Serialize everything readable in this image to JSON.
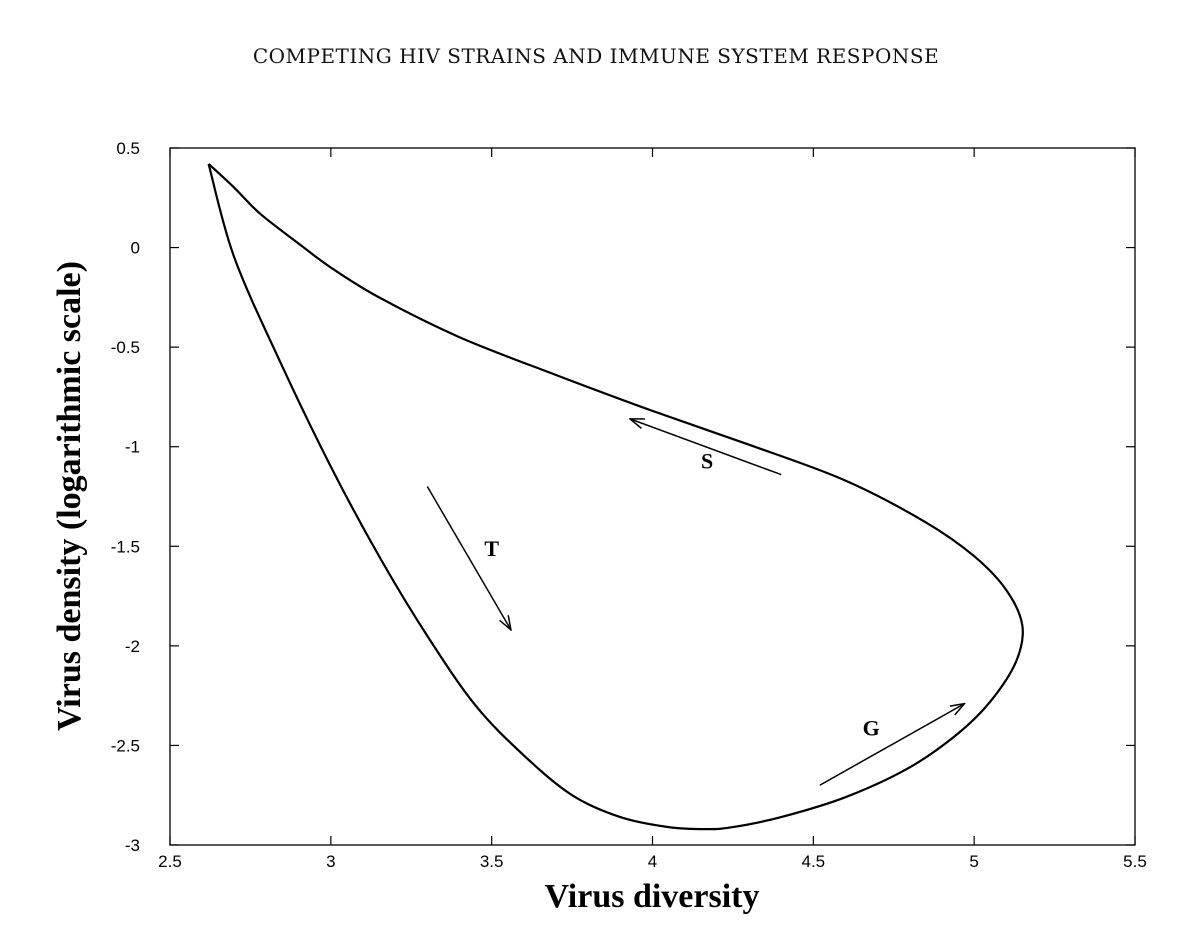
{
  "header": {
    "running_title": "COMPETING HIV STRAINS AND IMMUNE SYSTEM RESPONSE"
  },
  "chart_data": {
    "type": "line",
    "title": "",
    "xlabel": "Virus diversity",
    "ylabel": "Virus density (logarithmic scale)",
    "xlim": [
      2.5,
      5.5
    ],
    "ylim": [
      -3,
      0.5
    ],
    "xticks": [
      "2.5",
      "3",
      "3.5",
      "4",
      "4.5",
      "5",
      "5.5"
    ],
    "yticks": [
      "0.5",
      "0",
      "-0.5",
      "-1",
      "-1.5",
      "-2",
      "-2.5",
      "-3"
    ],
    "grid": false,
    "series": [
      {
        "x": [
          2.62,
          2.7,
          2.78,
          2.9,
          3.0,
          3.15,
          3.4,
          3.7,
          4.0,
          4.3,
          4.6,
          4.85,
          5.0,
          5.1,
          5.15,
          5.13,
          5.05,
          4.95,
          4.8,
          4.6,
          4.4,
          4.25,
          4.17,
          4.05,
          3.9,
          3.75,
          3.6,
          3.45,
          3.3,
          3.15,
          3.0,
          2.85,
          2.7,
          2.62
        ],
        "y": [
          0.42,
          0.3,
          0.17,
          0.02,
          -0.1,
          -0.25,
          -0.45,
          -0.64,
          -0.82,
          -0.99,
          -1.17,
          -1.38,
          -1.55,
          -1.72,
          -1.9,
          -2.08,
          -2.28,
          -2.44,
          -2.61,
          -2.76,
          -2.86,
          -2.91,
          -2.92,
          -2.91,
          -2.86,
          -2.75,
          -2.55,
          -2.3,
          -1.95,
          -1.55,
          -1.1,
          -0.6,
          -0.05,
          0.42
        ]
      }
    ],
    "annotations": [
      {
        "label": "S",
        "tx": 4.17,
        "ty": -1.11,
        "from": [
          4.4,
          -1.14
        ],
        "to": [
          3.93,
          -0.86
        ]
      },
      {
        "label": "T",
        "tx": 3.5,
        "ty": -1.55,
        "from": [
          3.3,
          -1.2
        ],
        "to": [
          3.56,
          -1.92
        ]
      },
      {
        "label": "G",
        "tx": 4.68,
        "ty": -2.45,
        "from": [
          4.52,
          -2.7
        ],
        "to": [
          4.97,
          -2.29
        ]
      }
    ]
  }
}
